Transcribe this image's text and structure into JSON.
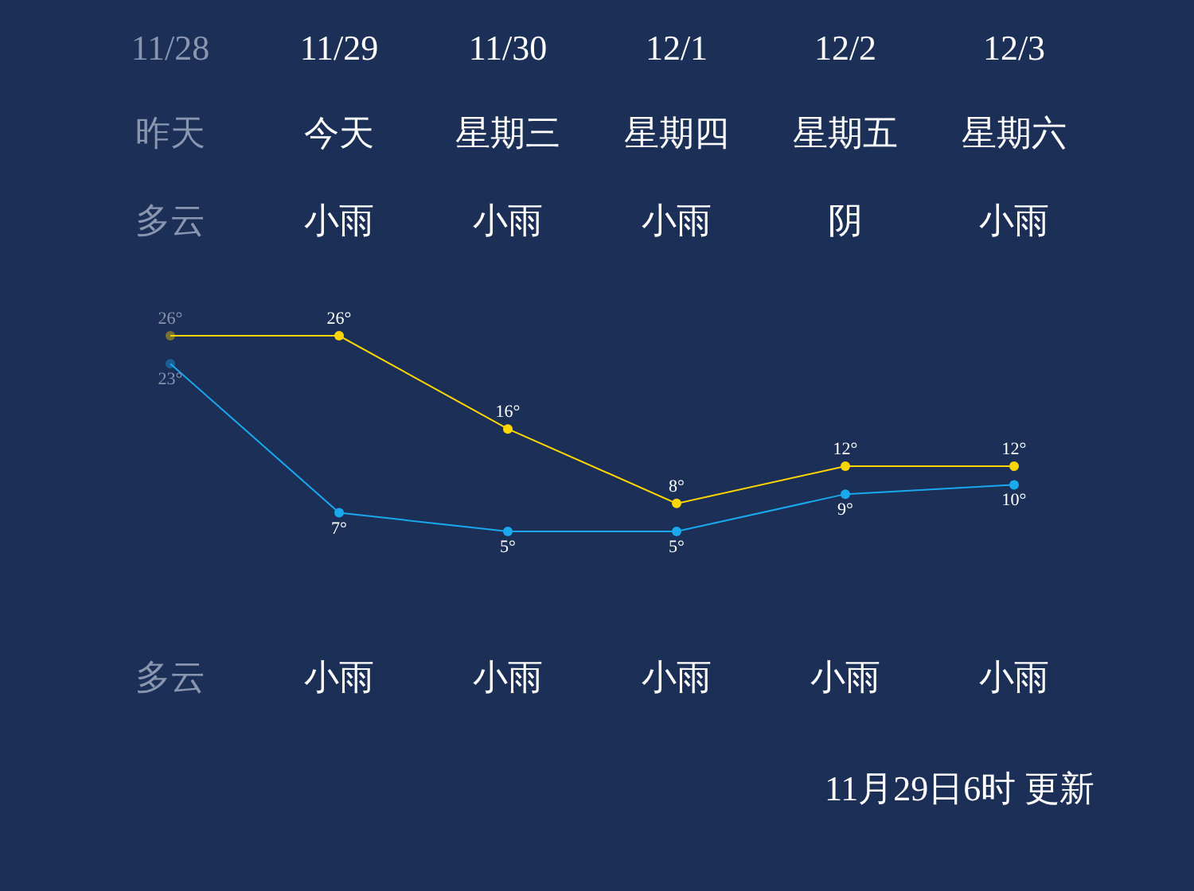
{
  "chart_data": {
    "type": "line",
    "categories": [
      "11/28",
      "11/29",
      "11/30",
      "12/1",
      "12/2",
      "12/3"
    ],
    "series": [
      {
        "color": "#ffd700",
        "values": [
          26,
          26,
          16,
          8,
          12,
          12
        ],
        "value_labels": [
          "26°",
          "26°",
          "16°",
          "8°",
          "12°",
          "12°"
        ]
      },
      {
        "color": "#1aa9ee",
        "values": [
          23,
          7,
          5,
          5,
          9,
          10
        ],
        "value_labels": [
          "23°",
          "7°",
          "5°",
          "5°",
          "9°",
          "10°"
        ]
      }
    ],
    "marker": "circle",
    "annotations": [
      "昨天",
      "今天",
      "星期三",
      "星期四",
      "星期五",
      "星期六",
      "多云",
      "小雨",
      "小雨",
      "小雨",
      "阴",
      "小雨",
      "多云",
      "小雨",
      "小雨",
      "小雨",
      "小雨",
      "小雨",
      "11月29日6时 更新"
    ]
  }
}
